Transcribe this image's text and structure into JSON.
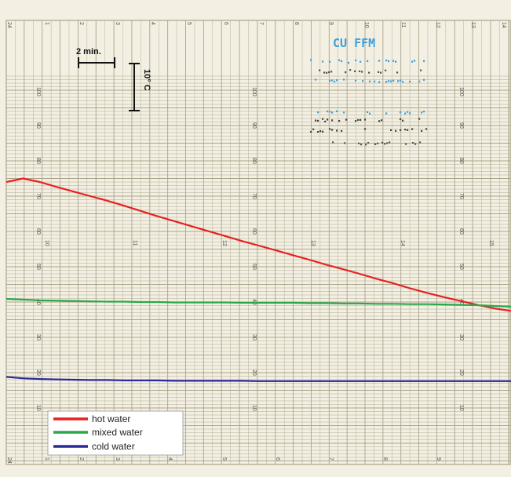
{
  "chart_data": {
    "type": "line",
    "title": "",
    "xlabel": "",
    "ylabel": "",
    "ylim": [
      0,
      100
    ],
    "grid": true,
    "legend": "bottom-left",
    "y_tick_labels": [
      "10",
      "20",
      "30",
      "40",
      "50",
      "60",
      "70",
      "80",
      "90",
      "100"
    ],
    "top_minute_labels": [
      "24",
      "1",
      "2",
      "3",
      "4",
      "5",
      "6",
      "7",
      "8",
      "9",
      "10",
      "11",
      "12",
      "13",
      "14"
    ],
    "bottom_minute_labels": [
      "24",
      "1",
      "2",
      "3",
      "4",
      "5",
      "6",
      "7",
      "8",
      "9"
    ],
    "mid_minute_labels": [
      "10",
      "11",
      "12",
      "13",
      "14",
      "15"
    ],
    "scale_bar_x": "2 min.",
    "scale_bar_y": "10° C",
    "stamp_text": "CU FFM",
    "x": [
      0,
      1,
      2,
      3,
      4,
      5,
      6,
      7,
      8,
      9,
      10,
      11,
      12,
      13,
      14,
      15,
      16,
      17,
      18,
      19,
      20,
      21,
      22,
      23,
      24,
      25,
      26,
      27,
      28,
      29,
      30
    ],
    "series": [
      {
        "name": "hot water",
        "color": "#e82020",
        "values": [
          74,
          75,
          74,
          72.6,
          71.3,
          70,
          68.7,
          67.3,
          65.8,
          64.3,
          62.9,
          61.5,
          60.1,
          58.7,
          57.3,
          56,
          54.7,
          53.3,
          52,
          50.6,
          49.3,
          48,
          46.6,
          45.3,
          43.9,
          42.6,
          41.4,
          40.3,
          39.2,
          38.2,
          37.5
        ]
      },
      {
        "name": "mixed water",
        "color": "#2aa84a",
        "values": [
          40.9,
          40.7,
          40.5,
          40.4,
          40.3,
          40.2,
          40.1,
          40.1,
          40,
          40,
          39.9,
          39.9,
          39.9,
          39.9,
          39.8,
          39.8,
          39.8,
          39.8,
          39.7,
          39.7,
          39.6,
          39.6,
          39.5,
          39.5,
          39.4,
          39.4,
          39.3,
          39.2,
          39.1,
          38.9,
          38.7
        ]
      },
      {
        "name": "cold water",
        "color": "#2a2a9a",
        "values": [
          18.8,
          18.4,
          18.2,
          18.1,
          18,
          17.9,
          17.9,
          17.8,
          17.8,
          17.8,
          17.7,
          17.7,
          17.7,
          17.7,
          17.7,
          17.6,
          17.6,
          17.6,
          17.6,
          17.6,
          17.6,
          17.6,
          17.6,
          17.6,
          17.6,
          17.6,
          17.6,
          17.6,
          17.6,
          17.6,
          17.6
        ]
      }
    ]
  },
  "colors": {
    "paper": "#f3efe2",
    "grid_line": "#a9a48a",
    "stamp": "#3aa0dc"
  }
}
